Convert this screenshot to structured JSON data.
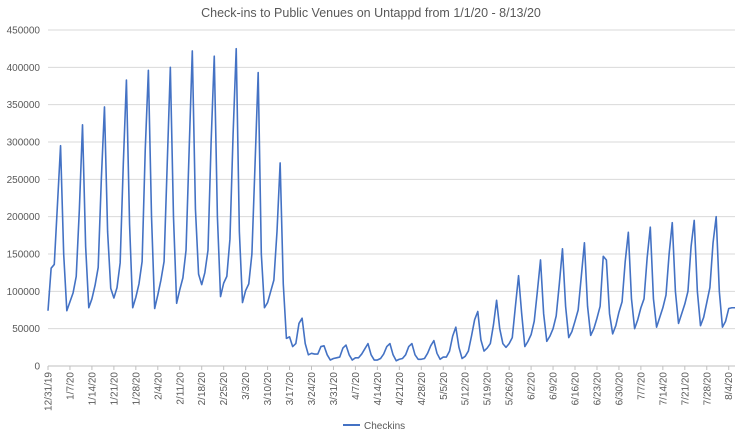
{
  "chart_data": {
    "type": "line",
    "title": "Check-ins  to Public Venues on Untappd from 1/1/20 - 8/13/20",
    "xlabel": "",
    "ylabel": "",
    "ylim": [
      0,
      450000
    ],
    "yticks": [
      0,
      50000,
      100000,
      150000,
      200000,
      250000,
      300000,
      350000,
      400000,
      450000
    ],
    "ytick_labels": [
      "0",
      "50000",
      "100000",
      "150000",
      "200000",
      "250000",
      "300000",
      "350000",
      "400000",
      "450000"
    ],
    "x_start": "12/31/19",
    "x_end": "8/13/20",
    "xtick_labels": [
      "12/31/19",
      "1/7/20",
      "1/14/20",
      "1/21/20",
      "1/28/20",
      "2/4/20",
      "2/11/20",
      "2/18/20",
      "2/25/20",
      "3/3/20",
      "3/10/20",
      "3/17/20",
      "3/24/20",
      "3/31/20",
      "4/7/20",
      "4/14/20",
      "4/21/20",
      "4/28/20",
      "5/5/20",
      "5/12/20",
      "5/19/20",
      "5/26/20",
      "6/2/20",
      "6/9/20",
      "6/16/20",
      "6/23/20",
      "6/30/20",
      "7/7/20",
      "7/14/20",
      "7/21/20",
      "7/28/20",
      "8/4/20",
      "8/11/20"
    ],
    "grid": true,
    "legend_position": "bottom",
    "series": [
      {
        "name": "Checkins",
        "color": "#4472c4",
        "values": [
          74000,
          131000,
          136000,
          215000,
          295000,
          150000,
          74000,
          86000,
          98000,
          120000,
          210000,
          323000,
          160000,
          78000,
          90000,
          108000,
          132000,
          250000,
          347000,
          180000,
          104000,
          91000,
          105000,
          138000,
          270000,
          383000,
          190000,
          78000,
          92000,
          110000,
          140000,
          290000,
          396000,
          200000,
          77000,
          95000,
          115000,
          140000,
          270000,
          400000,
          200000,
          84000,
          102000,
          118000,
          155000,
          290000,
          422000,
          210000,
          123000,
          109000,
          125000,
          155000,
          300000,
          415000,
          200000,
          93000,
          111000,
          120000,
          170000,
          310000,
          425000,
          180000,
          85000,
          101000,
          110000,
          150000,
          270000,
          393000,
          150000,
          78000,
          85000,
          100000,
          115000,
          180000,
          272000,
          110000,
          37000,
          39000,
          26000,
          30000,
          57000,
          64000,
          30000,
          15000,
          17000,
          16000,
          16000,
          26000,
          27000,
          15000,
          8000,
          10000,
          11000,
          12000,
          24000,
          28000,
          15000,
          8000,
          11000,
          11000,
          16000,
          23000,
          30000,
          15000,
          8000,
          8000,
          10000,
          16000,
          26000,
          30000,
          15000,
          7000,
          9000,
          10000,
          15000,
          26000,
          30000,
          15000,
          9000,
          9000,
          10000,
          17000,
          27000,
          34000,
          17000,
          9000,
          12000,
          12000,
          20000,
          40000,
          52000,
          25000,
          10000,
          13000,
          20000,
          40000,
          62000,
          73000,
          35000,
          20000,
          24000,
          30000,
          55000,
          88000,
          50000,
          30000,
          25000,
          30000,
          38000,
          80000,
          121000,
          70000,
          26000,
          33000,
          42000,
          60000,
          100000,
          142000,
          70000,
          33000,
          40000,
          50000,
          67000,
          110000,
          157000,
          80000,
          38000,
          46000,
          60000,
          75000,
          120000,
          165000,
          80000,
          41000,
          50000,
          64000,
          80000,
          147000,
          142000,
          70000,
          43000,
          54000,
          72000,
          86000,
          140000,
          179000,
          90000,
          50000,
          62000,
          78000,
          90000,
          145000,
          186000,
          90000,
          52000,
          65000,
          78000,
          95000,
          150000,
          192000,
          100000,
          57000,
          70000,
          83000,
          100000,
          160000,
          195000,
          100000,
          54000,
          65000,
          85000,
          105000,
          165000,
          200000,
          100000,
          52000,
          60000,
          77000,
          78000,
          78000
        ]
      }
    ]
  }
}
